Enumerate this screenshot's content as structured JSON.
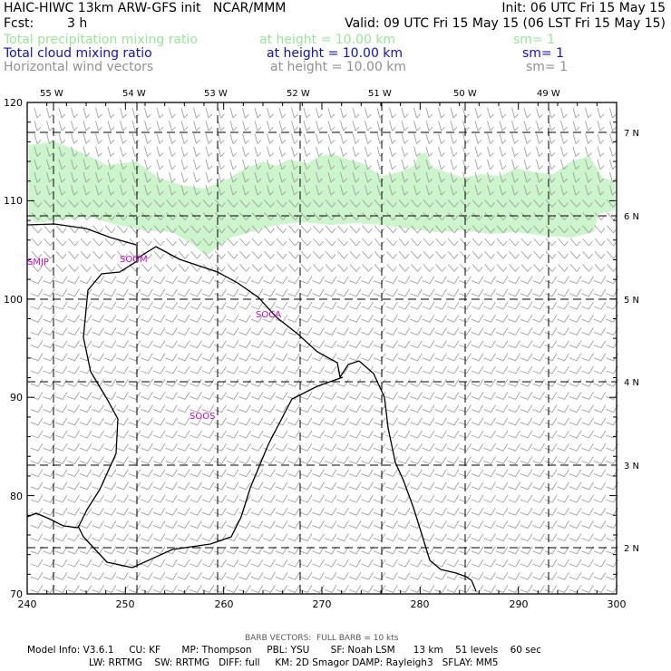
{
  "header": {
    "title": "HAIC-HIWC 13km ARW-GFS init   NCAR/MMM",
    "init": "Init: 06 UTC Fri 15 May 15",
    "fcst_label": "Fcst:",
    "fcst_value": "3 h",
    "valid": "Valid: 09 UTC Fri 15 May 15 (06 LST Fri 15 May 15)"
  },
  "fields": [
    {
      "name": "Total precipitation mixing ratio",
      "level": "at height = 10.00 km",
      "sm": "sm= 1",
      "color": "#99e699"
    },
    {
      "name": "Total cloud mixing ratio",
      "level": "at height = 10.00 km",
      "sm": "sm= 1",
      "color": "#1010c8"
    },
    {
      "name": "Horizontal wind vectors",
      "level": "at height = 10.00 km",
      "sm": "sm= 1",
      "color": "#909090"
    }
  ],
  "map": {
    "top_lon_labels": [
      "55 W",
      "54 W",
      "53 W",
      "52 W",
      "51 W",
      "50 W",
      "49 W"
    ],
    "right_lat_labels": [
      "7 N",
      "6 N",
      "5 N",
      "4 N",
      "3 N",
      "2 N"
    ],
    "x_ticks": [
      "240",
      "250",
      "260",
      "270",
      "280",
      "290",
      "300"
    ],
    "y_ticks": [
      "120",
      "110",
      "100",
      "90",
      "80",
      "70"
    ],
    "stations": [
      "SMJP",
      "SOGM",
      "SOCA",
      "SOOS"
    ],
    "colors": {
      "precip": "#ccf5cc",
      "barb": "#a0a0a0",
      "coast": "#000000",
      "station": "#cc00cc",
      "grid": "#000000"
    }
  },
  "footer": {
    "barb_note": "BARB VECTORS:  FULL BARB = 10 kts",
    "line1": "Model Info: V3.6.1     CU: KF       MP: Thompson     PBL: YSU       SF: Noah LSM      13 km    51 levels    60 sec",
    "line2": "LW: RRTMG    SW: RRTMG   DIFF: full     KM: 2D Smagor DAMP: Rayleigh3   SFLAY: MM5"
  }
}
